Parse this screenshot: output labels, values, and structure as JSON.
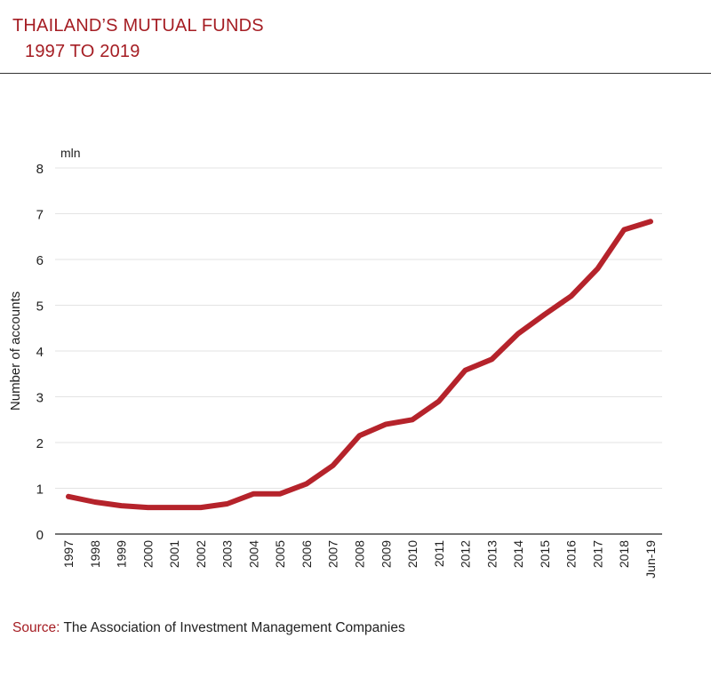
{
  "header": {
    "title_line1": "THAILAND’S MUTUAL FUNDS",
    "title_line2": "1997 TO 2019"
  },
  "source": {
    "label": "Source:",
    "text": "The Association of Investment Management Companies"
  },
  "colors": {
    "line": "#b5232b",
    "title": "#a51d23",
    "grid": "#e3e3e3",
    "axis": "#222222"
  },
  "chart_data": {
    "type": "line",
    "unit_label": "mln",
    "ylabel": "Number of accounts",
    "xlabel": "",
    "ylim": [
      0,
      8
    ],
    "yticks": [
      0,
      1,
      2,
      3,
      4,
      5,
      6,
      7,
      8
    ],
    "grid": true,
    "categories": [
      "1997",
      "1998",
      "1999",
      "2000",
      "2001",
      "2002",
      "2003",
      "2004",
      "2005",
      "2006",
      "2007",
      "2008",
      "2009",
      "2010",
      "2011",
      "2012",
      "2013",
      "2014",
      "2015",
      "2016",
      "2017",
      "2018",
      "Jun-19"
    ],
    "series": [
      {
        "values": [
          0.82,
          0.7,
          0.62,
          0.58,
          0.58,
          0.58,
          0.66,
          0.88,
          0.88,
          1.1,
          1.5,
          2.15,
          2.4,
          2.5,
          2.9,
          3.58,
          3.82,
          4.38,
          4.8,
          5.2,
          5.8,
          6.65,
          6.83
        ]
      }
    ]
  }
}
